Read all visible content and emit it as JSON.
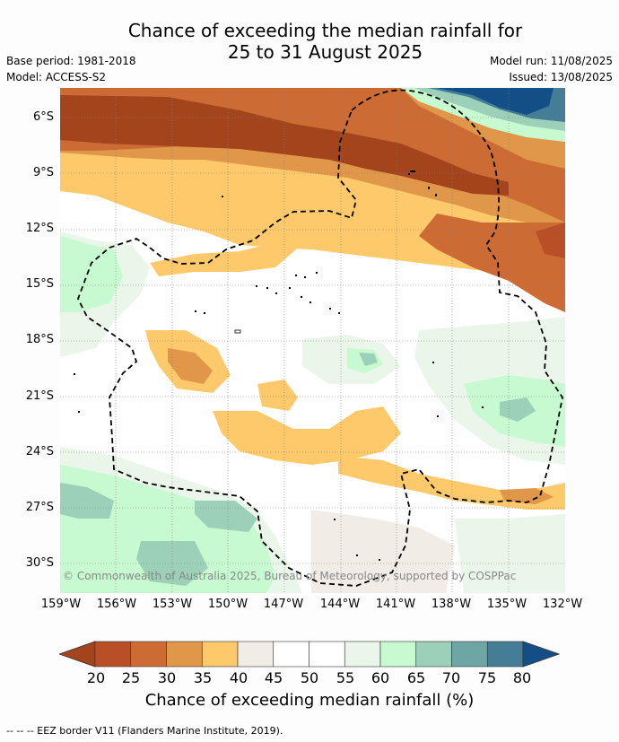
{
  "title_line1": "Chance of exceeding the median rainfall for",
  "title_line2": "25 to 31 August 2025",
  "base_period": "Base period: 1981-2018",
  "model": "Model: ACCESS-S2",
  "model_run": "Model run: 11/08/2025",
  "issued": "Issued: 13/08/2025",
  "copyright": "© Commonwealth of Australia 2025, Bureau of Meteorology, supported by COSPPac",
  "lat_labels": [
    "6°S",
    "9°S",
    "12°S",
    "15°S",
    "18°S",
    "21°S",
    "24°S",
    "27°S",
    "30°S"
  ],
  "lon_labels": [
    "159°W",
    "156°W",
    "153°W",
    "150°W",
    "147°W",
    "144°W",
    "141°W",
    "138°W",
    "135°W",
    "132°W"
  ],
  "colorbar": {
    "ticks": [
      "20",
      "25",
      "30",
      "35",
      "40",
      "45",
      "50",
      "55",
      "60",
      "65",
      "70",
      "75",
      "80"
    ],
    "colors": [
      "#a3441c",
      "#b84f26",
      "#cc6c34",
      "#e0974a",
      "#fec96a",
      "#f1ece6",
      "#ffffff",
      "#ffffff",
      "#e9f6e9",
      "#c7fad0",
      "#9dd0b8",
      "#6da6a4",
      "#457d96",
      "#144e86"
    ],
    "label": "Chance of exceeding median rainfall (%)"
  },
  "footer": "--  --  -- EEZ border V11 (Flanders Marine Institute, 2019)."
}
